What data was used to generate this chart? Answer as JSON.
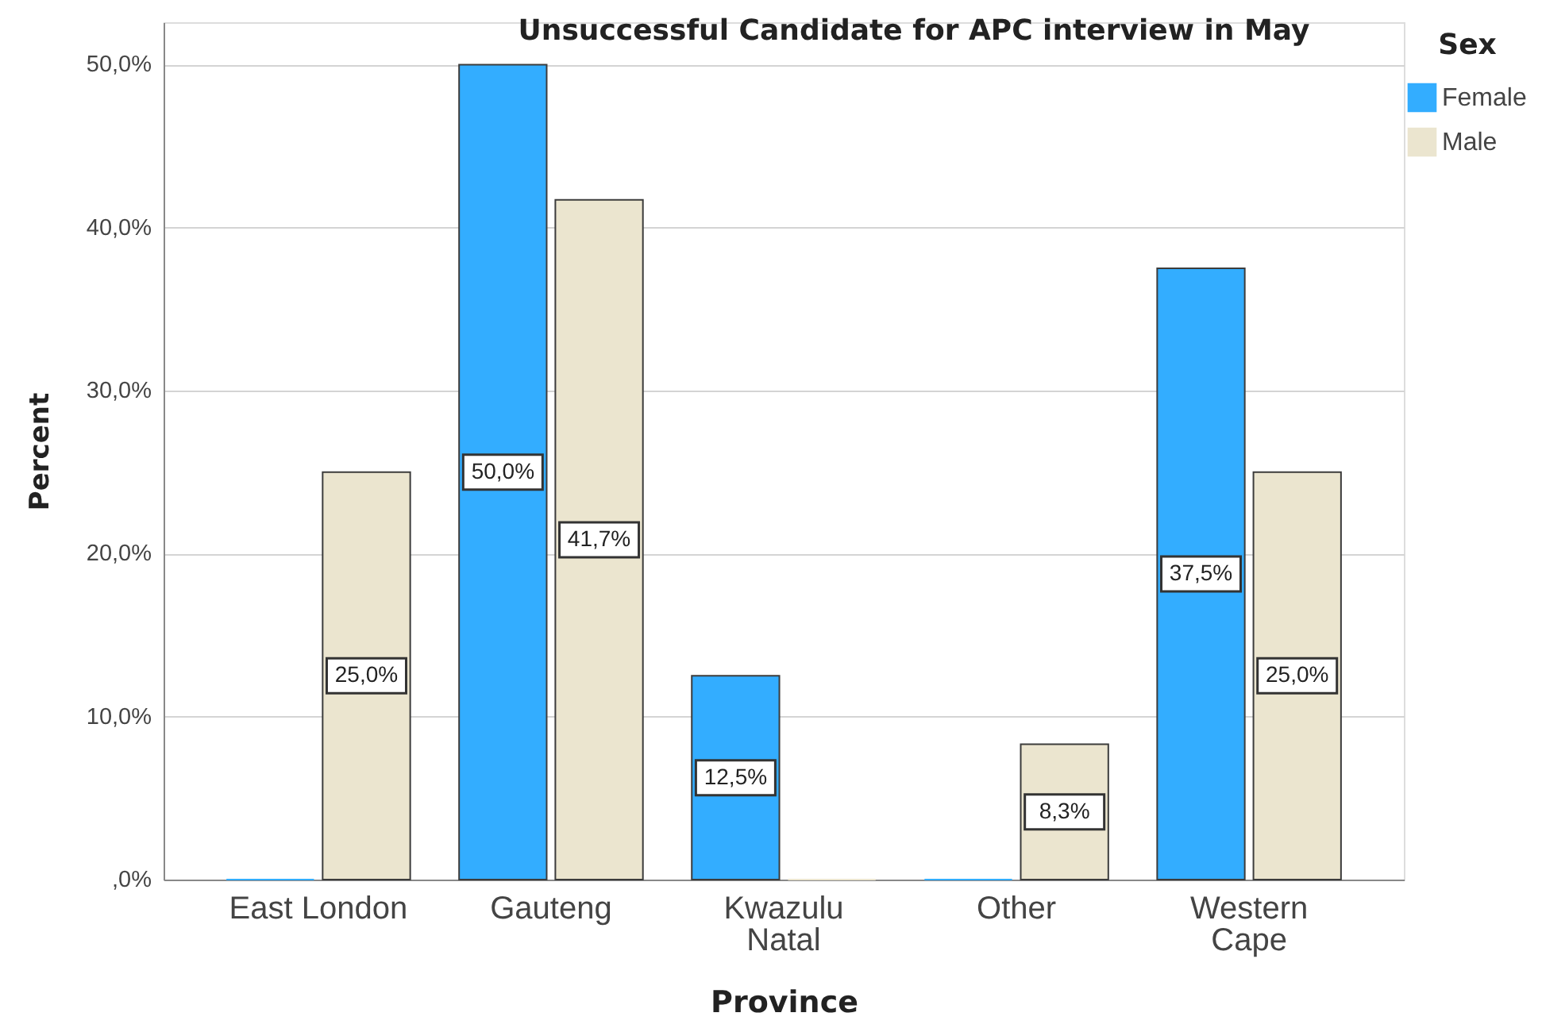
{
  "chart_data": {
    "type": "bar",
    "title": "Unsuccessful Candidate for APC interview in May",
    "xlabel": "Province",
    "ylabel": "Percent",
    "legend_title": "Sex",
    "categories": [
      "East London",
      "Gauteng",
      "Kwazulu\nNatal",
      "Other",
      "Western\nCape"
    ],
    "series": [
      {
        "name": "Female",
        "color": "#33adff",
        "values": [
          0,
          50.0,
          12.5,
          0,
          37.5
        ],
        "value_labels": [
          null,
          "50,0%",
          "12,5%",
          null,
          "37,5%"
        ]
      },
      {
        "name": "Male",
        "color": "#ebe5cf",
        "values": [
          25.0,
          41.7,
          0,
          8.3,
          25.0
        ],
        "value_labels": [
          "25,0%",
          "41,7%",
          null,
          "8,3%",
          "25,0%"
        ]
      }
    ],
    "ylim": [
      0,
      52.6
    ],
    "yticks": [
      {
        "value": 0,
        "label": ",0%"
      },
      {
        "value": 10,
        "label": "10,0%"
      },
      {
        "value": 20,
        "label": "20,0%"
      },
      {
        "value": 30,
        "label": "30,0%"
      },
      {
        "value": 40,
        "label": "40,0%"
      },
      {
        "value": 50,
        "label": "50,0%"
      }
    ],
    "grid": "y",
    "legend": "top right"
  }
}
